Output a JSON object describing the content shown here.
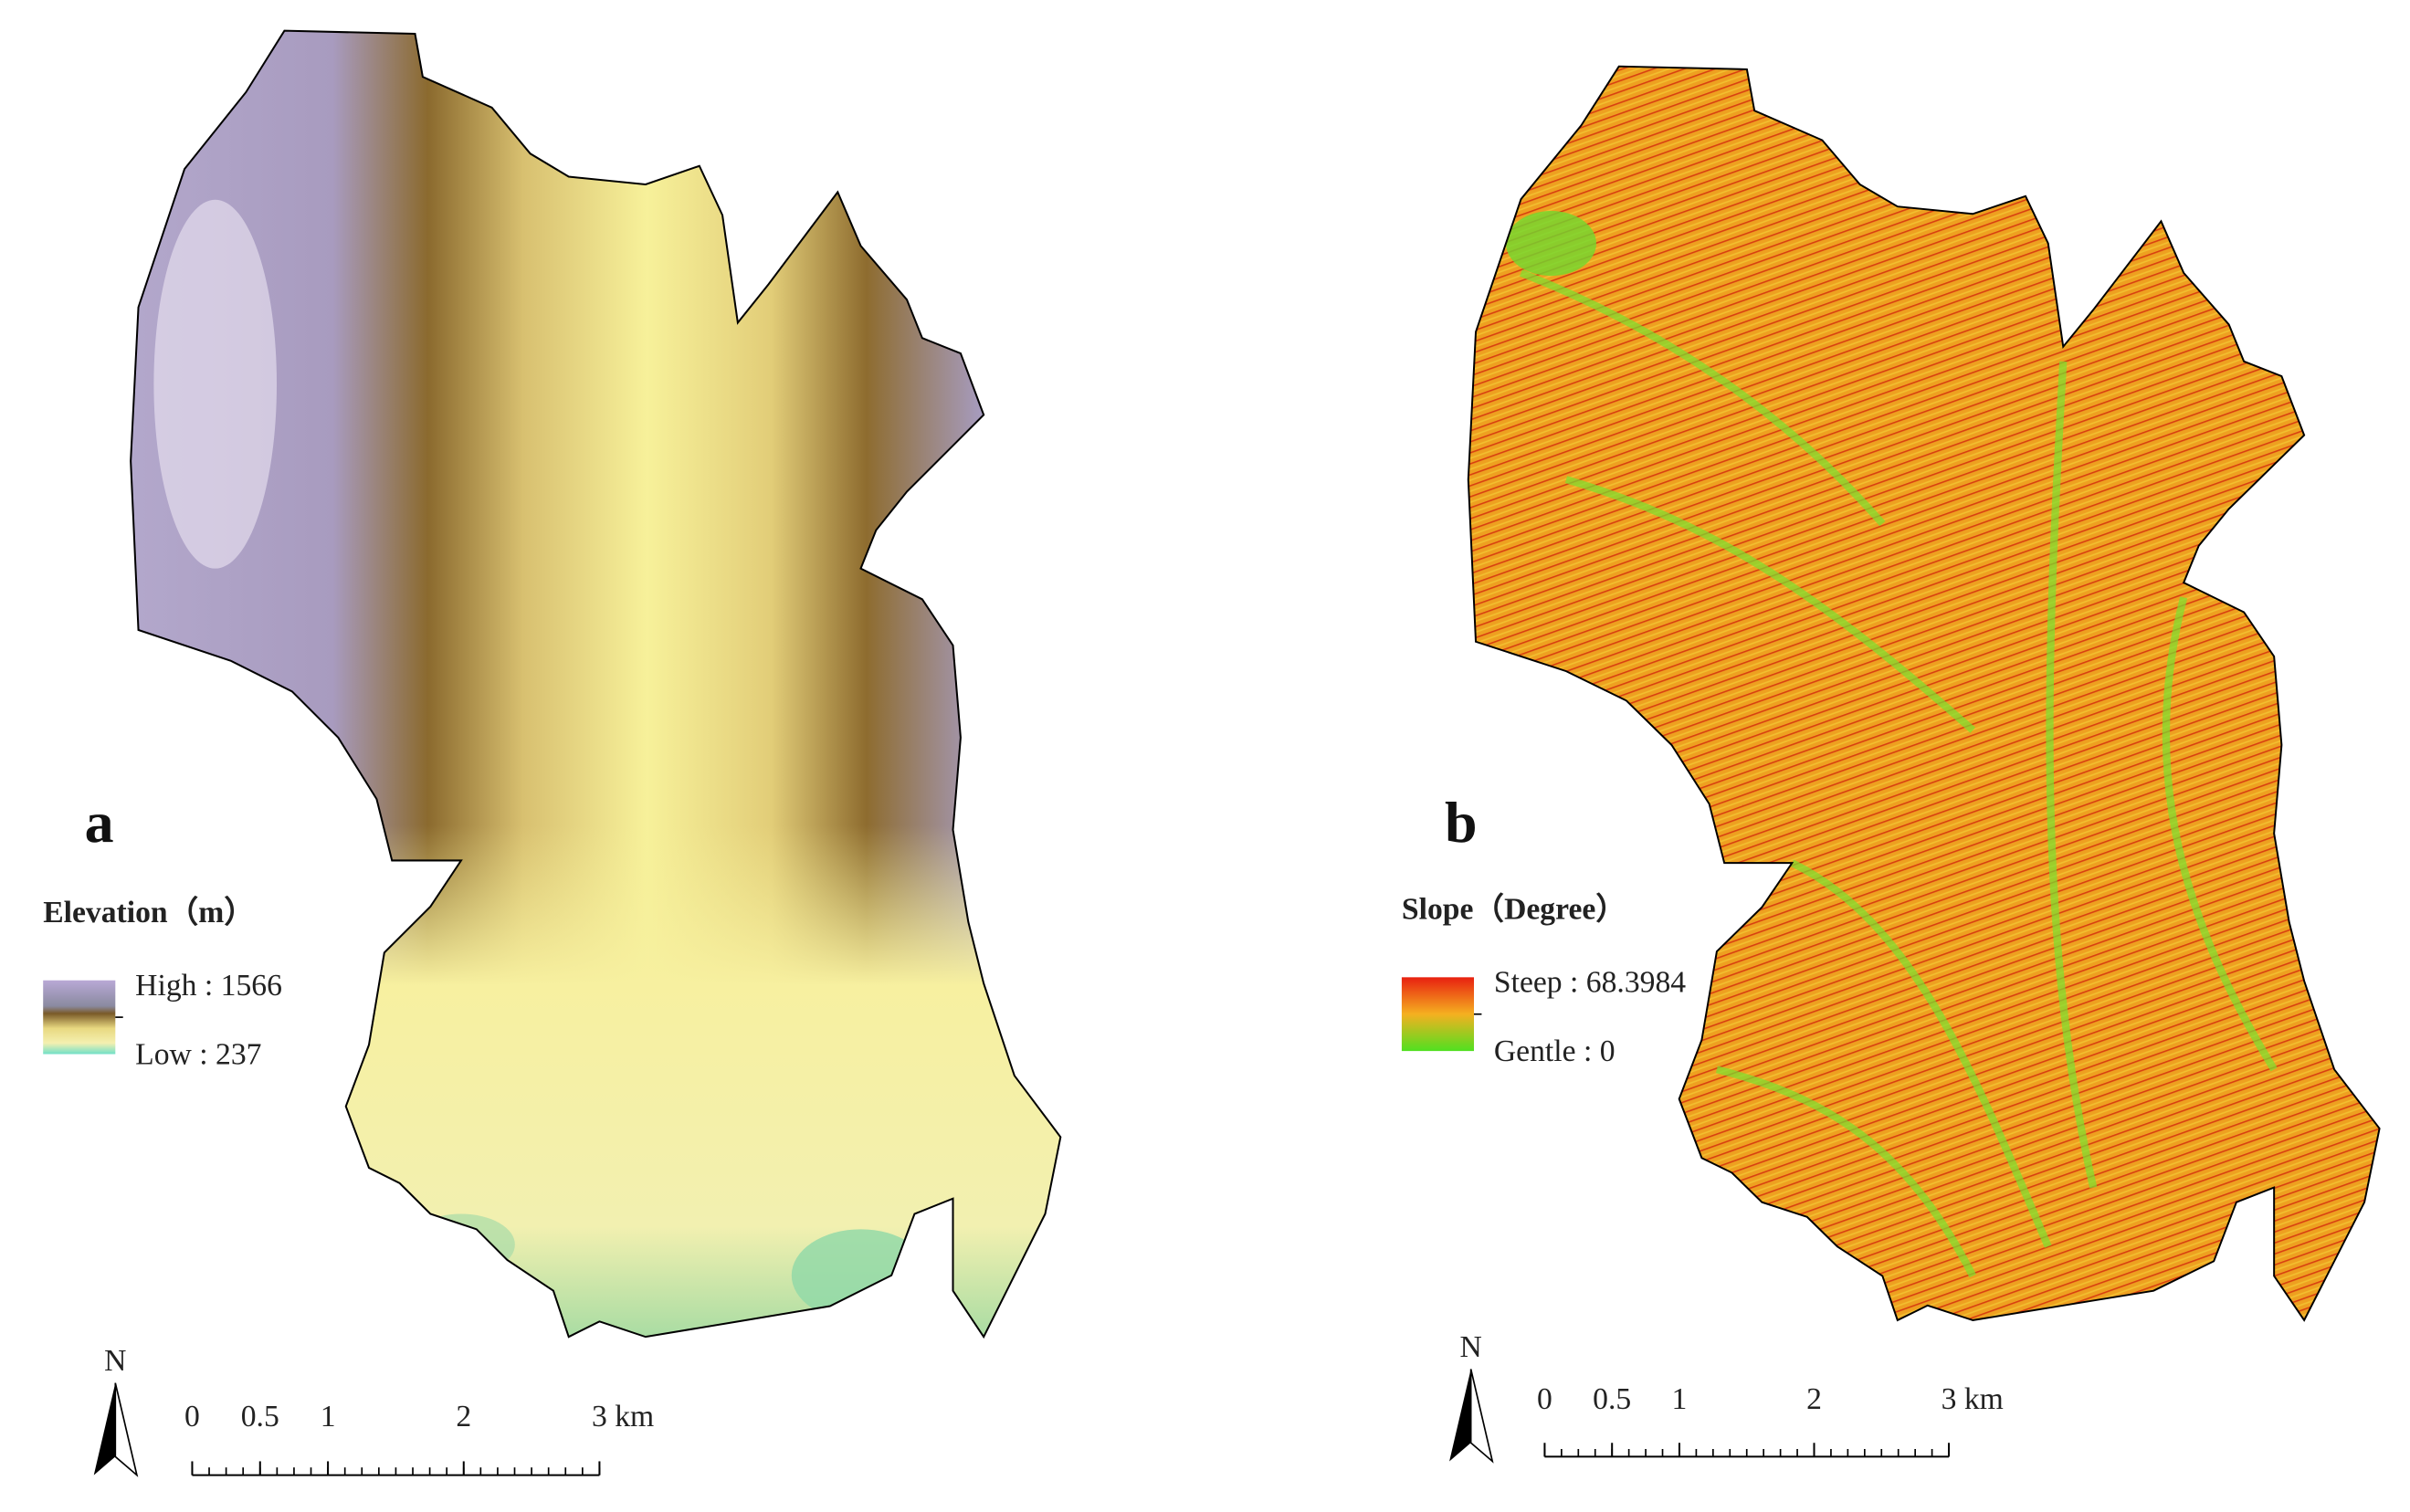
{
  "panels": [
    {
      "label": "a",
      "legend_title": "Elevation（m）",
      "legend_high": "High : 1566",
      "legend_low": "Low : 237",
      "north": "N",
      "scale_ticks": [
        0,
        0.5,
        1,
        2,
        3
      ],
      "scale_unit": "km"
    },
    {
      "label": "b",
      "legend_title": "Slope（Degree）",
      "legend_high": "Steep : 68.3984",
      "legend_low": "Gentle : 0",
      "north": "N",
      "scale_ticks": [
        0,
        0.5,
        1,
        2,
        3
      ],
      "scale_unit": "km"
    }
  ]
}
